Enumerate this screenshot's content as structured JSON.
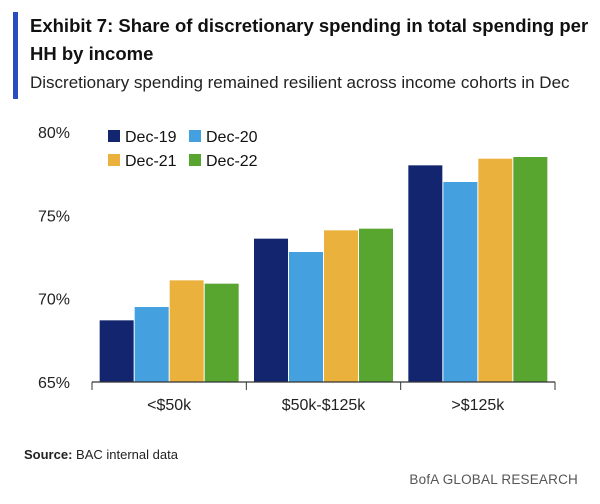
{
  "header": {
    "title": "Exhibit 7: Share of discretionary spending in total spending per HH by income",
    "subtitle": "Discretionary spending remained resilient across income cohorts in Dec"
  },
  "footer": {
    "source_label": "Source:",
    "source_text": "BAC internal data",
    "brand": "BofA GLOBAL RESEARCH"
  },
  "colors": {
    "accent": "#2a4cc0",
    "Dec-19": "#12256e",
    "Dec-20": "#45a0e0",
    "Dec-21": "#eab13d",
    "Dec-22": "#58a52f"
  },
  "chart_data": {
    "type": "bar",
    "title": "Exhibit 7: Share of discretionary spending in total spending per HH by income",
    "xlabel": "",
    "ylabel": "",
    "categories": [
      "<$50k",
      "$50k-$125k",
      ">$125k"
    ],
    "series": [
      {
        "name": "Dec-19",
        "values": [
          68.7,
          73.6,
          78.0
        ]
      },
      {
        "name": "Dec-20",
        "values": [
          69.5,
          72.8,
          77.0
        ]
      },
      {
        "name": "Dec-21",
        "values": [
          71.1,
          74.1,
          78.4
        ]
      },
      {
        "name": "Dec-22",
        "values": [
          70.9,
          74.2,
          78.5
        ]
      }
    ],
    "ylim": [
      65,
      80
    ],
    "yticks": [
      65,
      70,
      75,
      80
    ],
    "ytick_labels": [
      "65%",
      "70%",
      "75%",
      "80%"
    ],
    "legend": "top-left, two columns",
    "grid": false
  }
}
